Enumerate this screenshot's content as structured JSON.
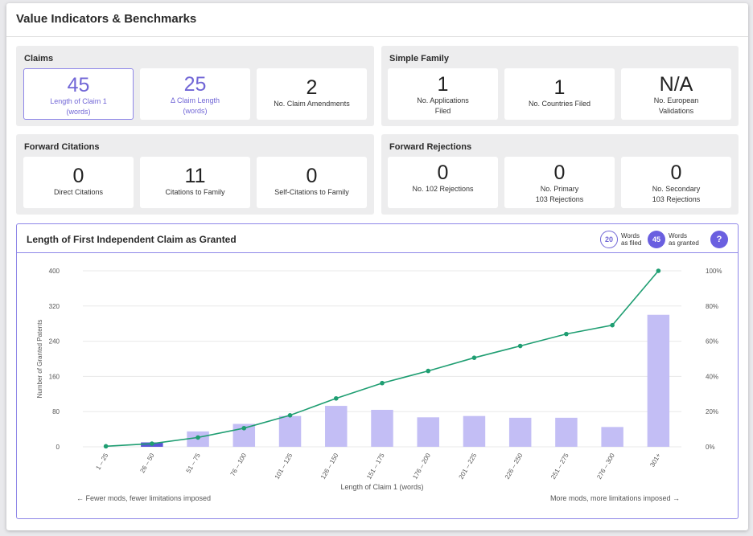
{
  "page": {
    "title": "Value Indicators & Benchmarks"
  },
  "claims": {
    "title": "Claims",
    "tiles": [
      {
        "value": "45",
        "label": "Length of Claim 1",
        "label2": "(words)"
      },
      {
        "value": "25",
        "label": "Δ Claim Length",
        "label2": "(words)"
      },
      {
        "value": "2",
        "label": "No. Claim Amendments",
        "label2": ""
      }
    ]
  },
  "simple_family": {
    "title": "Simple Family",
    "tiles": [
      {
        "value": "1",
        "label": "No. Applications",
        "label2": "Filed"
      },
      {
        "value": "1",
        "label": "No. Countries Filed",
        "label2": ""
      },
      {
        "value": "N/A",
        "label": "No. European",
        "label2": "Validations"
      }
    ]
  },
  "forward_citations": {
    "title": "Forward Citations",
    "tiles": [
      {
        "value": "0",
        "label": "Direct Citations",
        "label2": ""
      },
      {
        "value": "11",
        "label": "Citations to Family",
        "label2": ""
      },
      {
        "value": "0",
        "label": "Self-Citations to Family",
        "label2": ""
      }
    ]
  },
  "forward_rejections": {
    "title": "Forward Rejections",
    "tiles": [
      {
        "value": "0",
        "label": "No. 102 Rejections",
        "label2": ""
      },
      {
        "value": "0",
        "label": "No. Primary",
        "label2": "103 Rejections"
      },
      {
        "value": "0",
        "label": "No. Secondary",
        "label2": "103 Rejections"
      }
    ]
  },
  "chart_panel": {
    "title": "Length of First Independent Claim as Granted",
    "filed_value": "20",
    "filed_label1": "Words",
    "filed_label2": "as filed",
    "granted_value": "45",
    "granted_label1": "Words",
    "granted_label2": "as granted",
    "help": "?",
    "note_left": "← Fewer mods, fewer limitations imposed",
    "note_right": "More mods, more limitations imposed →"
  },
  "colors": {
    "accent": "#6a5fe0",
    "bar": "#c3bef5",
    "bar_highlight": "#5b55d6",
    "line": "#1f9e72"
  },
  "chart_data": {
    "type": "bar",
    "categories": [
      "1 – 25",
      "26 – 50",
      "51 – 75",
      "76 – 100",
      "101 – 125",
      "126 – 150",
      "151 – 175",
      "176 – 200",
      "201 – 225",
      "226 – 250",
      "251 – 275",
      "276 – 300",
      "301+"
    ],
    "series": [
      {
        "type": "bar",
        "axis": "left",
        "values": [
          0,
          10,
          35,
          52,
          70,
          93,
          84,
          67,
          70,
          66,
          66,
          45,
          300
        ]
      },
      {
        "type": "line",
        "axis": "right",
        "values": [
          0.3,
          1.8,
          5.3,
          10.6,
          17.9,
          27.5,
          36.2,
          43.1,
          50.6,
          57.3,
          64.1,
          69.1,
          100
        ]
      }
    ],
    "highlight_category": "26 – 50",
    "xlabel": "Length of Claim 1 (words)",
    "ylabel": "Number of Granted Patents",
    "ylim": [
      0,
      400
    ],
    "yticks": [
      "0",
      "80",
      "160",
      "240",
      "320",
      "400"
    ],
    "y2lim": [
      0,
      100
    ],
    "y2ticks": [
      "0%",
      "20%",
      "40%",
      "60%",
      "80%",
      "100%"
    ],
    "grid": true
  }
}
